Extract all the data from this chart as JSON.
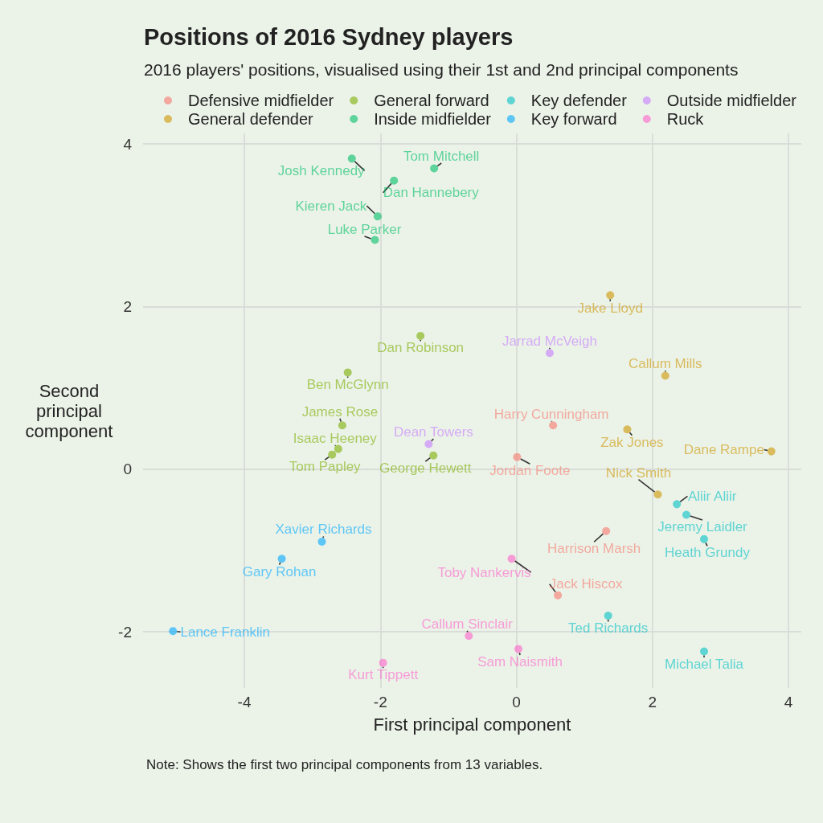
{
  "chart_data": {
    "type": "scatter",
    "title": "Positions of 2016 Sydney players",
    "subtitle": "2016 players' positions, visualised using their 1st and 2nd principal components",
    "xlabel": "First principal component",
    "ylabel": "Second principal component",
    "annotations": [
      "Note: Shows the first two principal components from 13 variables."
    ],
    "xlim": [
      -5.49,
      4.19
    ],
    "ylim": [
      -2.69,
      4.13
    ],
    "xticks": [
      -4,
      -2,
      0,
      2,
      4
    ],
    "yticks": [
      -2,
      0,
      2,
      4
    ],
    "grid": true,
    "legend": "top",
    "marker": "circle",
    "series": [
      {
        "name": "Defensive midfielder",
        "color": "#f8766d",
        "x": [
          0.54,
          0.01,
          1.32,
          0.61
        ],
        "values": [
          0.54,
          0.15,
          -0.76,
          -1.55
        ],
        "value_labels": [
          "Harry Cunningham",
          "Jordan Foote",
          "Harrison Marsh",
          "Jack Hiscox"
        ]
      },
      {
        "name": "General defender",
        "color": "#cd9600",
        "x": [
          1.38,
          2.19,
          1.63,
          3.75,
          2.08
        ],
        "values": [
          2.14,
          1.15,
          0.49,
          0.22,
          -0.31
        ],
        "value_labels": [
          "Jake Lloyd",
          "Callum Mills",
          "Zak Jones",
          "Dane Rampe",
          "Nick Smith"
        ]
      },
      {
        "name": "General forward",
        "color": "#7cae00",
        "x": [
          -1.41,
          -2.48,
          -2.56,
          -2.62,
          -2.71,
          -1.22
        ],
        "values": [
          1.64,
          1.19,
          0.54,
          0.25,
          0.18,
          0.17
        ],
        "value_labels": [
          "Dan Robinson",
          "Ben McGlynn",
          "James Rose",
          "Isaac Heeney",
          "Tom Papley",
          "George Hewett"
        ]
      },
      {
        "name": "Inside midfielder",
        "color": "#00be67",
        "x": [
          -2.42,
          -1.21,
          -1.8,
          -2.04,
          -2.08
        ],
        "values": [
          3.82,
          3.7,
          3.55,
          3.11,
          2.82
        ],
        "value_labels": [
          "Josh Kennedy",
          "Tom Mitchell",
          "Dan Hannebery",
          "Kieren Jack",
          "Luke Parker"
        ]
      },
      {
        "name": "Key defender",
        "color": "#00bfc4",
        "x": [
          2.36,
          2.5,
          2.76,
          1.35,
          2.76
        ],
        "values": [
          -0.43,
          -0.56,
          -0.86,
          -1.8,
          -2.24
        ],
        "value_labels": [
          "Aliir Aliir",
          "Jeremy Laidler",
          "Heath Grundy",
          "Ted Richards",
          "Michael Talia"
        ]
      },
      {
        "name": "Key forward",
        "color": "#00a9ff",
        "x": [
          -2.86,
          -3.45,
          -5.05
        ],
        "values": [
          -0.89,
          -1.1,
          -1.99
        ],
        "value_labels": [
          "Xavier Richards",
          "Gary Rohan",
          "Lance Franklin"
        ]
      },
      {
        "name": "Outside midfielder",
        "color": "#c77cff",
        "x": [
          0.49,
          -1.29
        ],
        "values": [
          1.43,
          0.31
        ],
        "value_labels": [
          "Jarrad McVeigh",
          "Dean Towers"
        ]
      },
      {
        "name": "Ruck",
        "color": "#ff61cc",
        "x": [
          -0.07,
          -0.7,
          0.03,
          -1.96
        ],
        "values": [
          -1.1,
          -2.05,
          -2.21,
          -2.38
        ],
        "value_labels": [
          "Toby Nankervis",
          "Callum Sinclair",
          "Sam Naismith",
          "Kurt Tippett"
        ]
      }
    ]
  }
}
